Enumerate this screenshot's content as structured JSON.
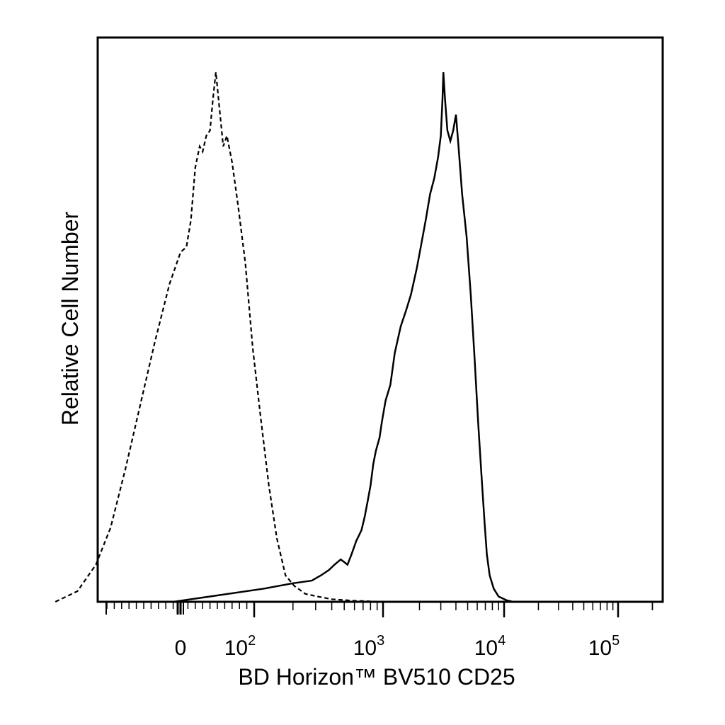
{
  "chart_data": {
    "type": "line",
    "xlabel": "BD Horizon™ BV510 CD25",
    "ylabel": "Relative Cell Number",
    "x_scale": "biexponential",
    "xlim": [
      -300,
      250000
    ],
    "grid": false,
    "x_ticks": [
      {
        "base": "0",
        "exp": "",
        "value": 0
      },
      {
        "base": "10",
        "exp": "2",
        "value": 100
      },
      {
        "base": "10",
        "exp": "3",
        "value": 1000
      },
      {
        "base": "10",
        "exp": "4",
        "value": 10000
      },
      {
        "base": "10",
        "exp": "5",
        "value": 100000
      }
    ],
    "series": [
      {
        "style": "dashed",
        "points": [
          [
            -170,
            0.0
          ],
          [
            -140,
            0.02
          ],
          [
            -115,
            0.07
          ],
          [
            -95,
            0.14
          ],
          [
            -75,
            0.25
          ],
          [
            -55,
            0.37
          ],
          [
            -35,
            0.49
          ],
          [
            -15,
            0.6
          ],
          [
            0,
            0.66
          ],
          [
            8,
            0.67
          ],
          [
            14,
            0.72
          ],
          [
            20,
            0.82
          ],
          [
            26,
            0.86
          ],
          [
            30,
            0.85
          ],
          [
            35,
            0.88
          ],
          [
            40,
            0.89
          ],
          [
            44,
            0.95
          ],
          [
            48,
            1.0
          ],
          [
            53,
            0.93
          ],
          [
            58,
            0.86
          ],
          [
            63,
            0.88
          ],
          [
            70,
            0.83
          ],
          [
            78,
            0.75
          ],
          [
            88,
            0.64
          ],
          [
            98,
            0.48
          ],
          [
            112,
            0.35
          ],
          [
            130,
            0.22
          ],
          [
            150,
            0.12
          ],
          [
            175,
            0.05
          ],
          [
            205,
            0.03
          ],
          [
            250,
            0.015
          ],
          [
            310,
            0.01
          ],
          [
            400,
            0.005
          ],
          [
            600,
            0.002
          ],
          [
            1000,
            0.0
          ]
        ]
      },
      {
        "style": "solid",
        "points": [
          [
            -10,
            0.0
          ],
          [
            40,
            0.01
          ],
          [
            120,
            0.025
          ],
          [
            200,
            0.035
          ],
          [
            280,
            0.04
          ],
          [
            330,
            0.05
          ],
          [
            380,
            0.06
          ],
          [
            420,
            0.07
          ],
          [
            470,
            0.08
          ],
          [
            500,
            0.075
          ],
          [
            530,
            0.07
          ],
          [
            570,
            0.09
          ],
          [
            620,
            0.115
          ],
          [
            680,
            0.135
          ],
          [
            720,
            0.16
          ],
          [
            760,
            0.19
          ],
          [
            800,
            0.22
          ],
          [
            840,
            0.26
          ],
          [
            880,
            0.285
          ],
          [
            940,
            0.31
          ],
          [
            980,
            0.34
          ],
          [
            1050,
            0.38
          ],
          [
            1150,
            0.41
          ],
          [
            1250,
            0.47
          ],
          [
            1400,
            0.52
          ],
          [
            1550,
            0.55
          ],
          [
            1700,
            0.58
          ],
          [
            1900,
            0.63
          ],
          [
            2050,
            0.67
          ],
          [
            2250,
            0.72
          ],
          [
            2450,
            0.77
          ],
          [
            2650,
            0.8
          ],
          [
            2850,
            0.84
          ],
          [
            3000,
            0.88
          ],
          [
            3100,
            0.95
          ],
          [
            3150,
            1.0
          ],
          [
            3250,
            0.95
          ],
          [
            3400,
            0.89
          ],
          [
            3600,
            0.87
          ],
          [
            3800,
            0.89
          ],
          [
            4000,
            0.92
          ],
          [
            4200,
            0.86
          ],
          [
            4500,
            0.77
          ],
          [
            4900,
            0.69
          ],
          [
            5300,
            0.58
          ],
          [
            5700,
            0.46
          ],
          [
            6100,
            0.34
          ],
          [
            6500,
            0.24
          ],
          [
            6900,
            0.15
          ],
          [
            7200,
            0.09
          ],
          [
            7600,
            0.05
          ],
          [
            8200,
            0.025
          ],
          [
            9000,
            0.01
          ],
          [
            10500,
            0.003
          ],
          [
            12000,
            0.0
          ]
        ]
      }
    ]
  }
}
